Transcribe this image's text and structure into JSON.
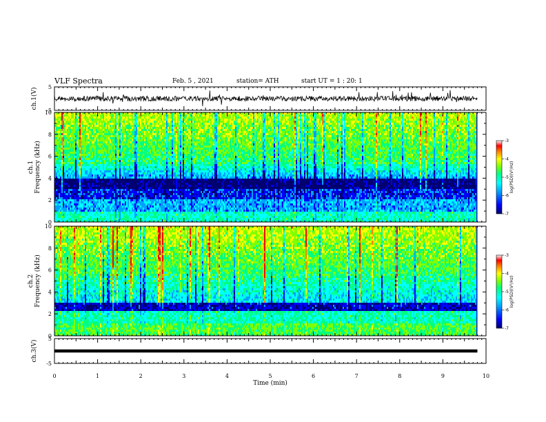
{
  "header": {
    "title": "VLF Spectra",
    "date": "Feb. 5 , 2021",
    "station": "station= ATH",
    "start_ut": "start  UT =   1 : 20: 1"
  },
  "chart_data": [
    {
      "type": "line",
      "panel": "ch1-waveform",
      "ylabel": "ch.1(V)",
      "yticks": [
        "5",
        "-5"
      ],
      "ylim": [
        -5,
        5
      ],
      "xlim": [
        0,
        10
      ],
      "trace_level": 0,
      "color": "#000000"
    },
    {
      "type": "heatmap",
      "panel": "ch1-spectrogram",
      "ylabel": "ch.1\nFrequency  (kHz)",
      "yticks": [
        "0",
        "2",
        "4",
        "6",
        "8",
        "10"
      ],
      "ylim": [
        0,
        10
      ],
      "xlim": [
        0,
        9.8
      ],
      "colorbar": {
        "label": "log(PSD)(V²/Hz)",
        "ticks": [
          "-3",
          "-4",
          "-5",
          "-6",
          "-7"
        ],
        "range": [
          -7,
          -3
        ]
      }
    },
    {
      "type": "heatmap",
      "panel": "ch2-spectrogram",
      "ylabel": "ch.2\nFrequency  (kHz)",
      "yticks": [
        "0",
        "2",
        "4",
        "6",
        "8",
        "10"
      ],
      "ylim": [
        0,
        10
      ],
      "xlim": [
        0,
        9.8
      ],
      "colorbar": {
        "label": "log(PSD)(V²/Hz)",
        "ticks": [
          "-3",
          "-4",
          "-5",
          "-6",
          "-7"
        ],
        "range": [
          -7,
          -3
        ]
      }
    },
    {
      "type": "line",
      "panel": "ch3-waveform",
      "ylabel": "ch.3(V)",
      "yticks": [
        "5",
        "-5"
      ],
      "ylim": [
        -5,
        5
      ],
      "xlim": [
        0,
        10
      ],
      "trace_level": 0,
      "color": "#000000"
    }
  ],
  "x_axis": {
    "label": "Time  (min)",
    "ticks": [
      "0",
      "1",
      "2",
      "3",
      "4",
      "5",
      "6",
      "7",
      "8",
      "9",
      "10"
    ],
    "range": [
      0,
      10
    ]
  },
  "colors": {
    "colormap": [
      "#000070",
      "#0000ff",
      "#00a0ff",
      "#00ffff",
      "#00ff80",
      "#80ff00",
      "#ffff00",
      "#ff8000",
      "#ff0000",
      "#ffffff"
    ]
  }
}
